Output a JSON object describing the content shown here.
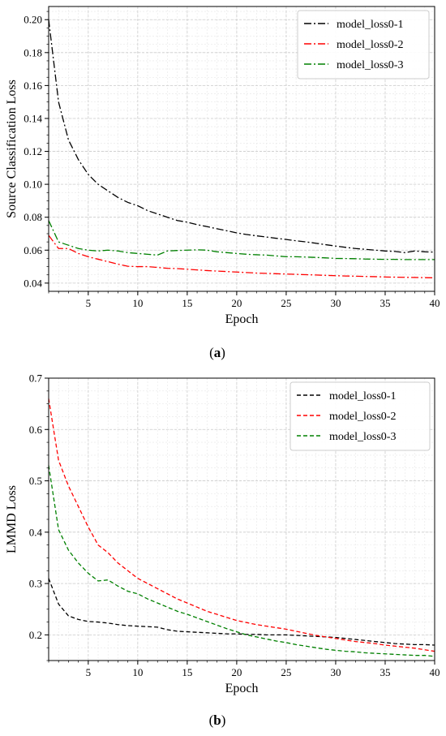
{
  "chart_data": [
    {
      "id": "a",
      "type": "line",
      "caption_letter": "a",
      "xlabel": "Epoch",
      "ylabel": "Source Classification Loss",
      "xlim": [
        1,
        40
      ],
      "ylim": [
        0.035,
        0.208
      ],
      "xticks": [
        5,
        10,
        15,
        20,
        25,
        30,
        35,
        40
      ],
      "yticks": [
        0.04,
        0.06,
        0.08,
        0.1,
        0.12,
        0.14,
        0.16,
        0.18,
        0.2
      ],
      "ytick_labels": [
        "0.04",
        "0.06",
        "0.08",
        "0.10",
        "0.12",
        "0.14",
        "0.16",
        "0.18",
        "0.20"
      ],
      "grid": true,
      "legend_position": "top-right",
      "line_style": "dash-dot",
      "x": [
        1,
        2,
        3,
        4,
        5,
        6,
        7,
        8,
        9,
        10,
        11,
        12,
        13,
        14,
        15,
        16,
        17,
        18,
        19,
        20,
        21,
        22,
        23,
        24,
        25,
        26,
        27,
        28,
        29,
        30,
        31,
        32,
        33,
        34,
        35,
        36,
        37,
        38,
        39,
        40
      ],
      "series": [
        {
          "name": "model_loss0-1",
          "color": "#000000",
          "values": [
            0.2,
            0.15,
            0.127,
            0.115,
            0.106,
            0.1,
            0.096,
            0.092,
            0.089,
            0.087,
            0.084,
            0.082,
            0.08,
            0.078,
            0.077,
            0.0755,
            0.0743,
            0.073,
            0.0718,
            0.0705,
            0.0695,
            0.0687,
            0.068,
            0.0672,
            0.0665,
            0.0657,
            0.065,
            0.0642,
            0.0633,
            0.0625,
            0.0617,
            0.061,
            0.0605,
            0.06,
            0.0595,
            0.0592,
            0.0585,
            0.0595,
            0.059,
            0.0588
          ]
        },
        {
          "name": "model_loss0-2",
          "color": "#ff0000",
          "values": [
            0.069,
            0.061,
            0.061,
            0.058,
            0.056,
            0.0545,
            0.053,
            0.0515,
            0.0502,
            0.05,
            0.05,
            0.0495,
            0.049,
            0.0488,
            0.0484,
            0.048,
            0.0476,
            0.0473,
            0.047,
            0.0467,
            0.0464,
            0.0461,
            0.0459,
            0.0457,
            0.0455,
            0.0453,
            0.0451,
            0.0449,
            0.0447,
            0.0445,
            0.0443,
            0.0442,
            0.044,
            0.0439,
            0.0437,
            0.0436,
            0.0435,
            0.0434,
            0.0433,
            0.0432
          ]
        },
        {
          "name": "model_loss0-3",
          "color": "#008000",
          "values": [
            0.078,
            0.065,
            0.063,
            0.061,
            0.06,
            0.0595,
            0.06,
            0.0595,
            0.0585,
            0.058,
            0.0575,
            0.057,
            0.0595,
            0.0598,
            0.06,
            0.0602,
            0.06,
            0.059,
            0.0585,
            0.058,
            0.0575,
            0.0572,
            0.057,
            0.0565,
            0.056,
            0.056,
            0.0558,
            0.0556,
            0.0553,
            0.055,
            0.0549,
            0.0548,
            0.0546,
            0.0545,
            0.0544,
            0.0544,
            0.0543,
            0.0543,
            0.0543,
            0.0543
          ]
        }
      ]
    },
    {
      "id": "b",
      "type": "line",
      "caption_letter": "b",
      "xlabel": "Epoch",
      "ylabel": "LMMD Loss",
      "xlim": [
        1,
        40
      ],
      "ylim": [
        0.15,
        0.7
      ],
      "xticks": [
        5,
        10,
        15,
        20,
        25,
        30,
        35,
        40
      ],
      "yticks": [
        0.2,
        0.3,
        0.4,
        0.5,
        0.6,
        0.7
      ],
      "ytick_labels": [
        "0.2",
        "0.3",
        "0.4",
        "0.5",
        "0.6",
        "0.7"
      ],
      "grid": true,
      "legend_position": "top-right",
      "line_style": "dashed",
      "x": [
        1,
        2,
        3,
        4,
        5,
        6,
        7,
        8,
        9,
        10,
        11,
        12,
        13,
        14,
        15,
        16,
        17,
        18,
        19,
        20,
        21,
        22,
        23,
        24,
        25,
        26,
        27,
        28,
        29,
        30,
        31,
        32,
        33,
        34,
        35,
        36,
        37,
        38,
        39,
        40
      ],
      "series": [
        {
          "name": "model_loss0-1",
          "color": "#000000",
          "values": [
            0.31,
            0.26,
            0.237,
            0.23,
            0.226,
            0.225,
            0.223,
            0.22,
            0.218,
            0.217,
            0.216,
            0.215,
            0.21,
            0.207,
            0.206,
            0.205,
            0.204,
            0.203,
            0.202,
            0.202,
            0.201,
            0.201,
            0.2,
            0.2,
            0.2,
            0.199,
            0.198,
            0.197,
            0.196,
            0.195,
            0.193,
            0.191,
            0.189,
            0.187,
            0.185,
            0.183,
            0.182,
            0.181,
            0.181,
            0.18
          ]
        },
        {
          "name": "model_loss0-2",
          "color": "#ff0000",
          "values": [
            0.66,
            0.54,
            0.49,
            0.45,
            0.41,
            0.375,
            0.36,
            0.34,
            0.325,
            0.31,
            0.3,
            0.29,
            0.28,
            0.27,
            0.262,
            0.254,
            0.246,
            0.24,
            0.234,
            0.228,
            0.224,
            0.22,
            0.217,
            0.214,
            0.211,
            0.207,
            0.203,
            0.199,
            0.196,
            0.193,
            0.19,
            0.187,
            0.185,
            0.183,
            0.18,
            0.178,
            0.176,
            0.174,
            0.171,
            0.168
          ]
        },
        {
          "name": "model_loss0-3",
          "color": "#008000",
          "values": [
            0.53,
            0.405,
            0.365,
            0.34,
            0.32,
            0.305,
            0.307,
            0.295,
            0.285,
            0.28,
            0.27,
            0.262,
            0.254,
            0.246,
            0.24,
            0.233,
            0.226,
            0.219,
            0.212,
            0.206,
            0.2,
            0.196,
            0.192,
            0.188,
            0.185,
            0.181,
            0.178,
            0.175,
            0.172,
            0.17,
            0.168,
            0.167,
            0.165,
            0.164,
            0.163,
            0.162,
            0.161,
            0.16,
            0.16,
            0.158
          ]
        }
      ]
    }
  ]
}
